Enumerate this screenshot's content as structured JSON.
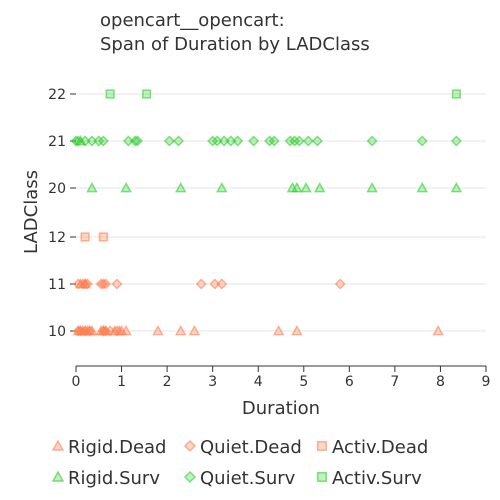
{
  "chart_data": {
    "type": "scatter",
    "title": [
      "opencart__opencart:",
      "Span of Duration by LADClass"
    ],
    "xlabel": "Duration",
    "ylabel": "LADClass",
    "xlim": [
      0,
      9
    ],
    "x_ticks": [
      0,
      1,
      2,
      3,
      4,
      5,
      6,
      7,
      8,
      9
    ],
    "categories": [
      "10",
      "11",
      "12",
      "20",
      "21",
      "22"
    ],
    "grid": "horizontal",
    "legend_position": "bottom",
    "series": [
      {
        "name": "Rigid.Dead",
        "marker": "triangle",
        "color": "#ff7f50",
        "points": [
          [
            0.05,
            "10"
          ],
          [
            0.1,
            "10"
          ],
          [
            0.15,
            "10"
          ],
          [
            0.2,
            "10"
          ],
          [
            0.25,
            "10"
          ],
          [
            0.3,
            "10"
          ],
          [
            0.35,
            "10"
          ],
          [
            0.55,
            "10"
          ],
          [
            0.6,
            "10"
          ],
          [
            0.65,
            "10"
          ],
          [
            0.85,
            "10"
          ],
          [
            0.95,
            "10"
          ],
          [
            1.0,
            "10"
          ],
          [
            1.1,
            "10"
          ],
          [
            1.8,
            "10"
          ],
          [
            2.3,
            "10"
          ],
          [
            2.6,
            "10"
          ],
          [
            4.45,
            "10"
          ],
          [
            4.85,
            "10"
          ],
          [
            7.95,
            "10"
          ],
          [
            0.1,
            "11"
          ],
          [
            0.2,
            "11"
          ]
        ]
      },
      {
        "name": "Quiet.Dead",
        "marker": "diamond",
        "color": "#ff7f50",
        "points": [
          [
            0.05,
            "10"
          ],
          [
            0.1,
            "10"
          ],
          [
            0.2,
            "10"
          ],
          [
            0.3,
            "10"
          ],
          [
            0.6,
            "10"
          ],
          [
            0.65,
            "10"
          ],
          [
            0.75,
            "10"
          ],
          [
            0.9,
            "10"
          ],
          [
            0.05,
            "11"
          ],
          [
            0.15,
            "11"
          ],
          [
            0.2,
            "11"
          ],
          [
            0.25,
            "11"
          ],
          [
            0.55,
            "11"
          ],
          [
            0.6,
            "11"
          ],
          [
            0.65,
            "11"
          ],
          [
            0.9,
            "11"
          ],
          [
            2.75,
            "11"
          ],
          [
            3.05,
            "11"
          ],
          [
            3.2,
            "11"
          ],
          [
            5.8,
            "11"
          ]
        ]
      },
      {
        "name": "Activ.Dead",
        "marker": "square",
        "color": "#ff7f50",
        "points": [
          [
            0.2,
            "12"
          ],
          [
            0.6,
            "12"
          ]
        ]
      },
      {
        "name": "Rigid.Surv",
        "marker": "triangle",
        "color": "#32cd32",
        "points": [
          [
            0.35,
            "20"
          ],
          [
            1.1,
            "20"
          ],
          [
            2.3,
            "20"
          ],
          [
            3.2,
            "20"
          ],
          [
            4.75,
            "20"
          ],
          [
            4.85,
            "20"
          ],
          [
            5.05,
            "20"
          ],
          [
            5.35,
            "20"
          ],
          [
            6.5,
            "20"
          ],
          [
            7.6,
            "20"
          ],
          [
            8.35,
            "20"
          ],
          [
            0.1,
            "21"
          ]
        ]
      },
      {
        "name": "Quiet.Surv",
        "marker": "diamond",
        "color": "#32cd32",
        "points": [
          [
            0.0,
            "21"
          ],
          [
            0.05,
            "21"
          ],
          [
            0.2,
            "21"
          ],
          [
            0.35,
            "21"
          ],
          [
            0.5,
            "21"
          ],
          [
            0.6,
            "21"
          ],
          [
            1.15,
            "21"
          ],
          [
            1.3,
            "21"
          ],
          [
            1.35,
            "21"
          ],
          [
            2.05,
            "21"
          ],
          [
            2.25,
            "21"
          ],
          [
            3.0,
            "21"
          ],
          [
            3.1,
            "21"
          ],
          [
            3.25,
            "21"
          ],
          [
            3.4,
            "21"
          ],
          [
            3.55,
            "21"
          ],
          [
            3.9,
            "21"
          ],
          [
            4.25,
            "21"
          ],
          [
            4.35,
            "21"
          ],
          [
            4.7,
            "21"
          ],
          [
            4.8,
            "21"
          ],
          [
            4.9,
            "21"
          ],
          [
            5.1,
            "21"
          ],
          [
            5.3,
            "21"
          ],
          [
            6.5,
            "21"
          ],
          [
            7.6,
            "21"
          ],
          [
            8.35,
            "21"
          ]
        ]
      },
      {
        "name": "Activ.Surv",
        "marker": "square",
        "color": "#32cd32",
        "points": [
          [
            0.75,
            "22"
          ],
          [
            1.55,
            "22"
          ],
          [
            8.35,
            "22"
          ]
        ]
      }
    ]
  }
}
